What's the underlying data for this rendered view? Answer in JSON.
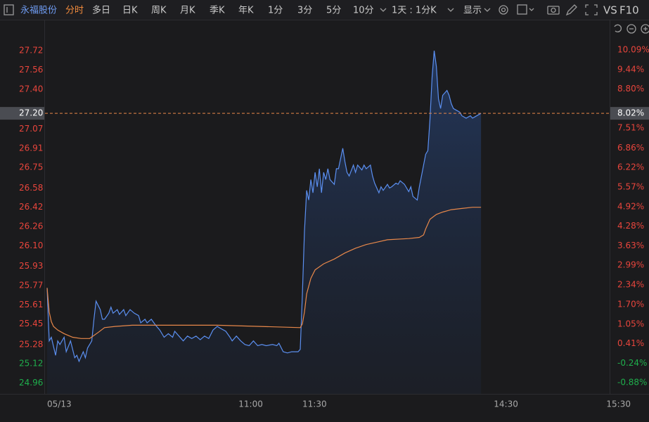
{
  "toolbar": {
    "stock": "永福股份",
    "tabs": [
      "分时",
      "多日",
      "日K",
      "周K",
      "月K",
      "季K",
      "年K",
      "1分",
      "3分",
      "5分",
      "10分"
    ],
    "interval": "1天 : 1分K",
    "display": "显示",
    "vs": "VS",
    "f10": "F10"
  },
  "chart_data": {
    "type": "line",
    "xlim": [
      0,
      270
    ],
    "xticks": [
      {
        "value": 0,
        "label": "05/13"
      },
      {
        "value": 90,
        "label": "11:00"
      },
      {
        "value": 120,
        "label": "11:30"
      },
      {
        "value": 210,
        "label": "14:30"
      },
      {
        "value": 270,
        "label": "15:30"
      }
    ],
    "ylim": [
      24.87,
      27.82
    ],
    "yticks": [
      27.72,
      27.56,
      {
        "value": 27.4,
        "label": "27.40"
      },
      27.07,
      26.91,
      26.75,
      26.58,
      26.42,
      26.26,
      {
        "value": 26.1,
        "label": "26.10"
      },
      25.93,
      25.77,
      25.61,
      25.45,
      25.28,
      25.12,
      24.96
    ],
    "y2lim": [
      -1.25,
      10.46
    ],
    "y2ticks": [
      {
        "value": 10.09,
        "label": "10.09%"
      },
      {
        "value": 9.44,
        "label": "9.44%"
      },
      {
        "value": 8.8,
        "label": "8.80%"
      },
      {
        "value": 7.51,
        "label": "7.51%"
      },
      {
        "value": 6.86,
        "label": "6.86%"
      },
      {
        "value": 6.22,
        "label": "6.22%"
      },
      {
        "value": 5.57,
        "label": "5.57%"
      },
      {
        "value": 4.92,
        "label": "4.92%"
      },
      {
        "value": 4.28,
        "label": "4.28%"
      },
      {
        "value": 3.63,
        "label": "3.63%"
      },
      {
        "value": 2.99,
        "label": "2.99%"
      },
      {
        "value": 2.34,
        "label": "2.34%"
      },
      {
        "value": 1.7,
        "label": "1.70%"
      },
      {
        "value": 1.05,
        "label": "1.05%"
      },
      {
        "value": 0.41,
        "label": "0.41%"
      },
      {
        "value": -0.24,
        "label": "-0.24%"
      },
      {
        "value": -0.88,
        "label": "-0.88%"
      }
    ],
    "up_color": "#e8453c",
    "down_color": "#1fae4c",
    "current": {
      "price": {
        "value": 27.2,
        "label": "27.20"
      },
      "change": {
        "value": 8.02,
        "label": "8.02%"
      },
      "color": "#e8884a"
    },
    "area": true,
    "series": [
      {
        "name": "price",
        "color": "#5b8ff0",
        "x": [
          0,
          1,
          2,
          4,
          5,
          6,
          8,
          9,
          11,
          13,
          14,
          15,
          17,
          18,
          19,
          21,
          22,
          23,
          25,
          26,
          27,
          29,
          30,
          31,
          33,
          34,
          36,
          37,
          39,
          41,
          43,
          44,
          46,
          47,
          49,
          51,
          53,
          55,
          57,
          59,
          60,
          62,
          64,
          66,
          68,
          70,
          72,
          74,
          76,
          78,
          80,
          82,
          84,
          86,
          87,
          89,
          91,
          93,
          95,
          97,
          99,
          101,
          103,
          106,
          108,
          109,
          111,
          113,
          115,
          118,
          119,
          120,
          121,
          122,
          123,
          124,
          125,
          126,
          127,
          128,
          129,
          130,
          131,
          132,
          133,
          135,
          136,
          137,
          139,
          140,
          141,
          142,
          144,
          145,
          146,
          148,
          149,
          150,
          152,
          153,
          154,
          156,
          157,
          158,
          160,
          161,
          162,
          164,
          165,
          166,
          168,
          170,
          171,
          172,
          174,
          175,
          176,
          178,
          179,
          180,
          181,
          182,
          183,
          184,
          185,
          186,
          188,
          189,
          190,
          191,
          193,
          194,
          195,
          197,
          199,
          200,
          201,
          203,
          204
        ],
        "values": [
          25.75,
          25.31,
          25.34,
          25.19,
          25.31,
          25.28,
          25.34,
          25.22,
          25.31,
          25.17,
          25.19,
          25.14,
          25.22,
          25.17,
          25.25,
          25.31,
          25.49,
          25.64,
          25.57,
          25.49,
          25.49,
          25.54,
          25.59,
          25.54,
          25.57,
          25.53,
          25.57,
          25.52,
          25.57,
          25.54,
          25.52,
          25.46,
          25.49,
          25.46,
          25.49,
          25.44,
          25.4,
          25.34,
          25.37,
          25.34,
          25.39,
          25.35,
          25.31,
          25.35,
          25.33,
          25.35,
          25.32,
          25.35,
          25.33,
          25.4,
          25.43,
          25.41,
          25.39,
          25.34,
          25.31,
          25.35,
          25.31,
          25.28,
          25.27,
          25.31,
          25.27,
          25.28,
          25.27,
          25.28,
          25.27,
          25.29,
          25.22,
          25.21,
          25.22,
          25.22,
          25.24,
          25.69,
          26.22,
          26.56,
          26.48,
          26.65,
          26.54,
          26.71,
          26.59,
          26.74,
          26.54,
          26.71,
          26.65,
          26.74,
          26.65,
          26.61,
          26.74,
          26.74,
          26.91,
          26.8,
          26.71,
          26.68,
          26.77,
          26.71,
          26.77,
          26.73,
          26.77,
          26.74,
          26.77,
          26.68,
          26.62,
          26.54,
          26.59,
          26.56,
          26.61,
          26.58,
          26.59,
          26.62,
          26.61,
          26.64,
          26.61,
          26.55,
          26.59,
          26.51,
          26.48,
          26.59,
          26.68,
          26.86,
          26.89,
          27.15,
          27.5,
          27.72,
          27.59,
          27.32,
          27.24,
          27.35,
          27.39,
          27.35,
          27.28,
          27.24,
          27.22,
          27.21,
          27.18,
          27.16,
          27.18,
          27.16,
          27.17,
          27.19,
          27.2
        ]
      },
      {
        "name": "average",
        "color": "#e8884a",
        "x": [
          0,
          1,
          2,
          3,
          5,
          8,
          12,
          16,
          20,
          24,
          27,
          32,
          40,
          60,
          80,
          100,
          119,
          120,
          121,
          122,
          124,
          126,
          130,
          135,
          140,
          145,
          150,
          155,
          160,
          170,
          175,
          177,
          178,
          180,
          183,
          186,
          190,
          195,
          200,
          204
        ],
        "values": [
          25.75,
          25.55,
          25.47,
          25.43,
          25.4,
          25.37,
          25.34,
          25.33,
          25.33,
          25.38,
          25.42,
          25.43,
          25.44,
          25.44,
          25.44,
          25.43,
          25.42,
          25.45,
          25.55,
          25.7,
          25.83,
          25.9,
          25.95,
          25.99,
          26.04,
          26.08,
          26.11,
          26.13,
          26.15,
          26.16,
          26.17,
          26.19,
          26.24,
          26.32,
          26.36,
          26.38,
          26.4,
          26.41,
          26.42,
          26.42
        ]
      }
    ]
  }
}
